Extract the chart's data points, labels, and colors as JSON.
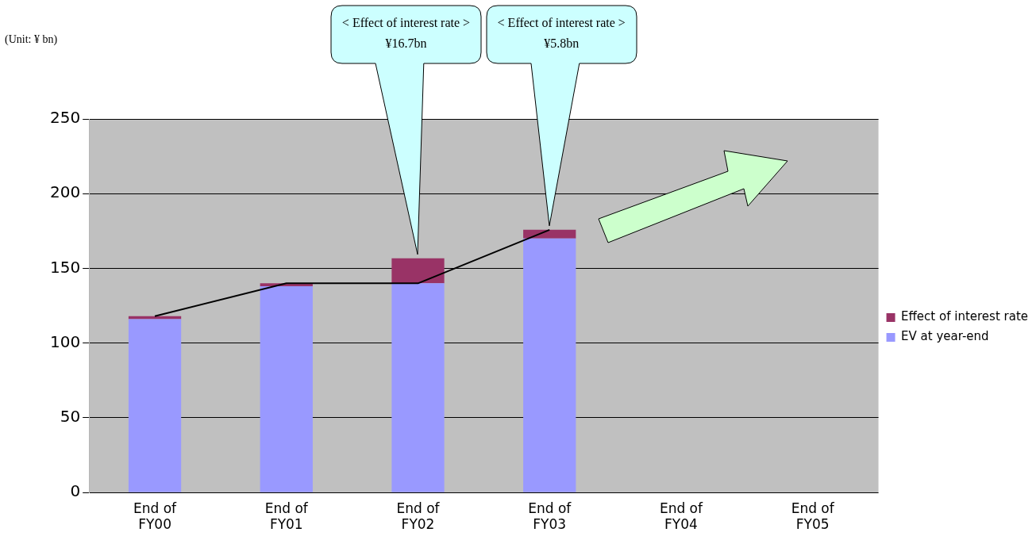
{
  "chart_data": {
    "type": "bar",
    "stacked": true,
    "categories": [
      "End of\nFY00",
      "End of\nFY01",
      "End of\nFY02",
      "End of\nFY03",
      "End of\nFY04",
      "End of\nFY05"
    ],
    "series": [
      {
        "name": "EV at year-end",
        "color": "#9999ff",
        "values": [
          116,
          138,
          140,
          170,
          null,
          null
        ]
      },
      {
        "name": "Effect of interest rate",
        "color": "#993366",
        "values": [
          2,
          2,
          16.7,
          5.8,
          null,
          null
        ]
      },
      {
        "type": "line",
        "color": "#000000",
        "values": [
          118,
          140,
          140,
          175.8,
          null,
          null
        ]
      }
    ],
    "ylim": [
      0,
      250
    ],
    "yticks": [
      0,
      50,
      100,
      150,
      200,
      250
    ],
    "grid": "y",
    "legend": "right",
    "marker": "none",
    "annotations": [
      "(Unit: ¥ bn)",
      "< Effect of interest rate >\n¥16.7bn",
      "< Effect of interest rate >\n¥5.8bn"
    ]
  }
}
